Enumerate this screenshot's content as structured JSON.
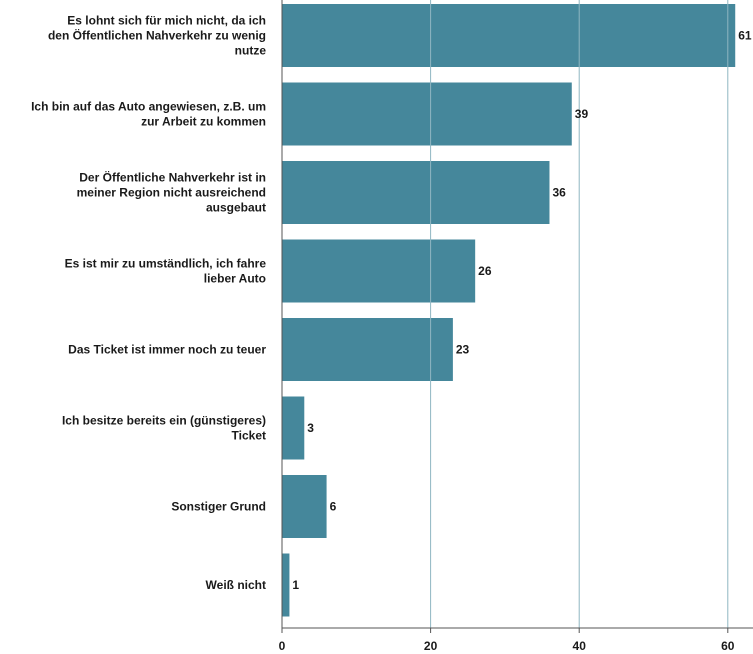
{
  "chart_data": {
    "type": "bar",
    "orientation": "horizontal",
    "categories": [
      "Es lohnt sich für mich nicht, da ich den Öffentlichen Nahverkehr zu wenig nutze",
      "Ich bin auf das Auto angewiesen, z.B. um zur Arbeit zu kommen",
      "Der Öffentliche Nahverkehr ist in meiner Region nicht ausreichend ausgebaut",
      "Es ist mir zu umständlich, ich fahre lieber Auto",
      "Das Ticket ist immer noch zu teuer",
      "Ich besitze bereits ein (günstigeres) Ticket",
      "Sonstiger Grund",
      "Weiß nicht"
    ],
    "category_lines": [
      [
        "Es lohnt sich für mich nicht, da ich",
        "den Öffentlichen Nahverkehr zu wenig",
        "nutze"
      ],
      [
        "Ich bin auf das Auto angewiesen, z.B. um",
        "zur Arbeit zu kommen"
      ],
      [
        "Der Öffentliche Nahverkehr ist in",
        "meiner Region nicht ausreichend",
        "ausgebaut"
      ],
      [
        "Es ist mir zu umständlich, ich fahre",
        "lieber Auto"
      ],
      [
        "Das Ticket ist immer noch zu teuer"
      ],
      [
        "Ich besitze bereits ein (günstigeres)",
        "Ticket"
      ],
      [
        "Sonstiger Grund"
      ],
      [
        "Weiß nicht"
      ]
    ],
    "values": [
      61,
      39,
      36,
      26,
      23,
      3,
      6,
      1
    ],
    "value_labels": [
      "61",
      "39",
      "36",
      "26",
      "23",
      "3",
      "6",
      "1"
    ],
    "xlim": [
      0,
      62.5
    ],
    "xticks": [
      0,
      20,
      40,
      60
    ],
    "xtick_labels": [
      "0",
      "20",
      "40",
      "60"
    ],
    "grid": true,
    "bar_color": "#45879b",
    "grid_color": "#8fb6c2",
    "axis_color": "#555555",
    "title": "",
    "xlabel": "",
    "ylabel": ""
  }
}
